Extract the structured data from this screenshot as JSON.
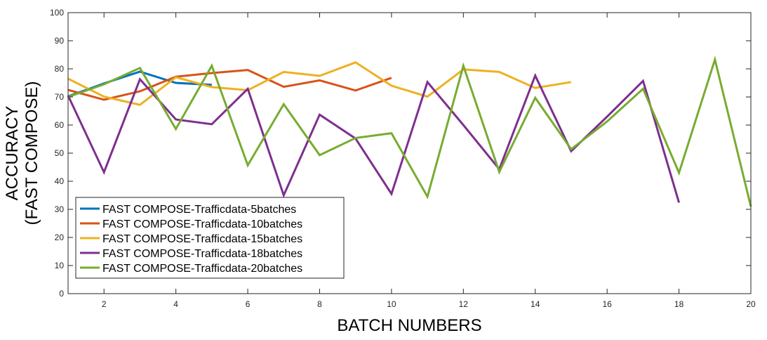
{
  "chart_data": {
    "type": "line",
    "xlabel": "BATCH NUMBERS",
    "ylabel_lines": [
      "ACCURACY",
      "(FAST COMPOSE)"
    ],
    "xlim": [
      1,
      20
    ],
    "ylim": [
      0,
      100
    ],
    "xticks": [
      2,
      4,
      6,
      8,
      10,
      12,
      14,
      16,
      18,
      20
    ],
    "yticks": [
      0,
      10,
      20,
      30,
      40,
      50,
      60,
      70,
      80,
      90,
      100
    ],
    "grid": false,
    "legend_position": "bottom-left",
    "series": [
      {
        "name": "FAST COMPOSE-Trafficdata-5batches",
        "color": "#0072bd",
        "x": [
          1,
          2,
          3,
          4,
          5
        ],
        "y": [
          70.2,
          74.8,
          79,
          75,
          74.3
        ]
      },
      {
        "name": "FAST COMPOSE-Trafficdata-10batches",
        "color": "#d95319",
        "x": [
          1,
          2,
          3,
          4,
          5,
          6,
          7,
          8,
          9,
          10
        ],
        "y": [
          72.5,
          69,
          72,
          77.2,
          78.5,
          79.6,
          73.6,
          75.9,
          72.3,
          76.8
        ]
      },
      {
        "name": "FAST COMPOSE-Trafficdata-15batches",
        "color": "#edb120",
        "x": [
          1,
          2,
          3,
          4,
          5,
          6,
          7,
          8,
          9,
          10,
          11,
          12,
          13,
          14,
          15
        ],
        "y": [
          76.5,
          70.1,
          67.2,
          77,
          73.5,
          72.4,
          78.9,
          77.5,
          82.3,
          74,
          70.1,
          79.8,
          78.9,
          73.2,
          75.3
        ]
      },
      {
        "name": "FAST COMPOSE-Trafficdata-18batches",
        "color": "#7e2f8e",
        "x": [
          1,
          2,
          3,
          4,
          5,
          6,
          7,
          8,
          9,
          10,
          11,
          12,
          13,
          14,
          15,
          16,
          17,
          18
        ],
        "y": [
          70.5,
          43.2,
          76.3,
          62,
          60.3,
          72.9,
          35,
          63.7,
          55.2,
          35.5,
          75.3,
          60,
          44.3,
          77.6,
          50.7,
          63,
          75.7,
          32.4
        ]
      },
      {
        "name": "FAST COMPOSE-Trafficdata-20batches",
        "color": "#77ac30",
        "x": [
          1,
          2,
          3,
          4,
          5,
          6,
          7,
          8,
          9,
          10,
          11,
          12,
          13,
          14,
          15,
          16,
          17,
          18,
          19,
          20
        ],
        "y": [
          70,
          74.5,
          80.3,
          58.6,
          81.1,
          45.7,
          67.4,
          49.3,
          55.4,
          57.1,
          34.5,
          81.1,
          43.3,
          69.7,
          51.4,
          61.3,
          72.9,
          43,
          83.3,
          31
        ]
      }
    ]
  }
}
